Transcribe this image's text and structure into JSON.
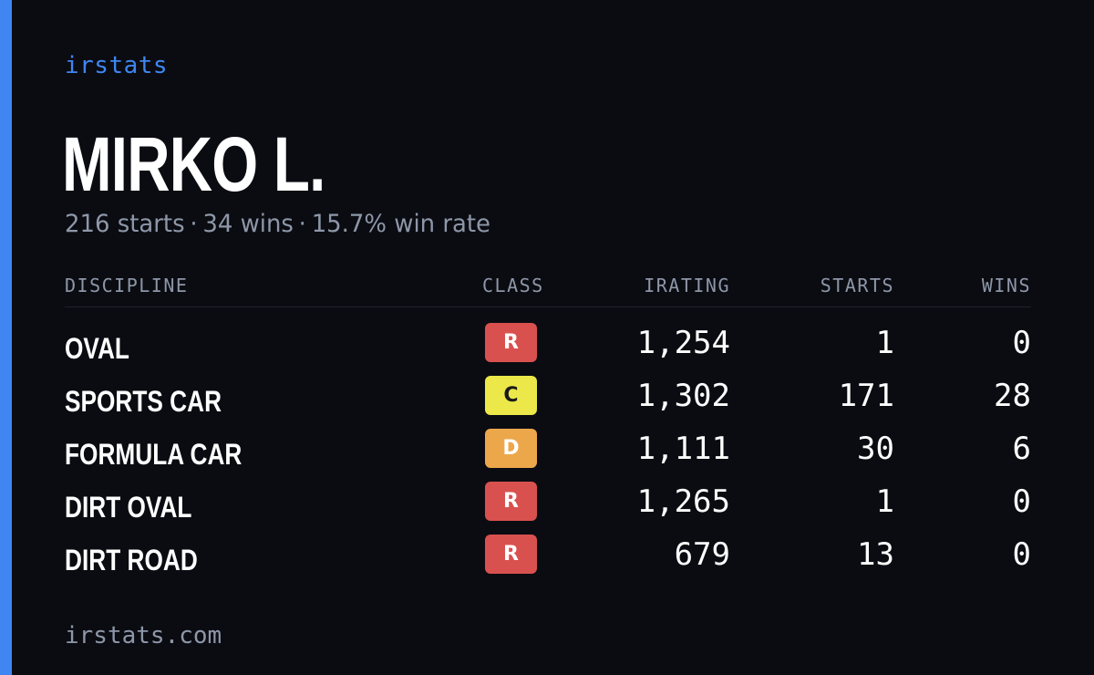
{
  "brand": "irstats",
  "driver": {
    "name": "MIRKO L.",
    "summary": {
      "starts": "216 starts",
      "wins": "34 wins",
      "win_rate": "15.7% win rate",
      "separator": "·"
    }
  },
  "table": {
    "headers": {
      "discipline": "DISCIPLINE",
      "class": "CLASS",
      "irating": "IRATING",
      "starts": "STARTS",
      "wins": "WINS"
    },
    "rows": [
      {
        "discipline": "OVAL",
        "class": "R",
        "irating": "1,254",
        "starts": "1",
        "wins": "0"
      },
      {
        "discipline": "SPORTS CAR",
        "class": "C",
        "irating": "1,302",
        "starts": "171",
        "wins": "28"
      },
      {
        "discipline": "FORMULA CAR",
        "class": "D",
        "irating": "1,111",
        "starts": "30",
        "wins": "6"
      },
      {
        "discipline": "DIRT OVAL",
        "class": "R",
        "irating": "1,265",
        "starts": "1",
        "wins": "0"
      },
      {
        "discipline": "DIRT ROAD",
        "class": "R",
        "irating": "679",
        "starts": "13",
        "wins": "0"
      }
    ]
  },
  "class_colors": {
    "R": {
      "bg": "#d9514e",
      "fg": "#ffffff"
    },
    "C": {
      "bg": "#ece84a",
      "fg": "#1a1a1a"
    },
    "D": {
      "bg": "#eca74b",
      "fg": "#ffffff"
    }
  },
  "colors": {
    "accent": "#3f86f2",
    "background": "#0a0c12",
    "muted": "#8e97a8"
  },
  "footer": "irstats.com"
}
